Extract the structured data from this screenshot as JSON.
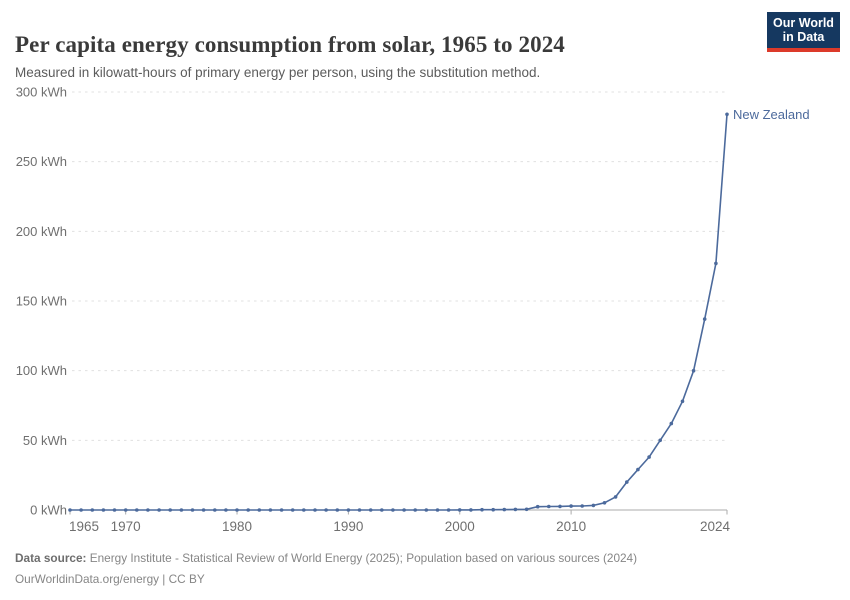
{
  "header": {
    "title": "Per capita energy consumption from solar, 1965 to 2024",
    "subtitle": "Measured in kilowatt-hours of primary energy per person, using the substitution method."
  },
  "logo": {
    "line1": "Our World",
    "line2": "in Data",
    "bg_color": "#153860",
    "bar_color": "#dc3a2a"
  },
  "chart_data": {
    "type": "line",
    "title": "Per capita energy consumption from solar, 1965 to 2024",
    "xlabel": "",
    "ylabel": "kWh",
    "xlim": [
      1965,
      2024
    ],
    "ylim": [
      0,
      300
    ],
    "grid": "horizontal-dashed",
    "legend_position": "end-of-line-label",
    "x_ticks": [
      1965,
      1970,
      1980,
      1990,
      2000,
      2010,
      2024
    ],
    "y_ticks": [
      0,
      50,
      100,
      150,
      200,
      250,
      300
    ],
    "y_tick_suffix": " kWh",
    "x": [
      1965,
      1966,
      1967,
      1968,
      1969,
      1970,
      1971,
      1972,
      1973,
      1974,
      1975,
      1976,
      1977,
      1978,
      1979,
      1980,
      1981,
      1982,
      1983,
      1984,
      1985,
      1986,
      1987,
      1988,
      1989,
      1990,
      1991,
      1992,
      1993,
      1994,
      1995,
      1996,
      1997,
      1998,
      1999,
      2000,
      2001,
      2002,
      2003,
      2004,
      2005,
      2006,
      2007,
      2008,
      2009,
      2010,
      2011,
      2012,
      2013,
      2014,
      2015,
      2016,
      2017,
      2018,
      2019,
      2020,
      2021,
      2022,
      2023,
      2024
    ],
    "series": [
      {
        "name": "New Zealand",
        "color": "#4C6A9C",
        "values": [
          0,
          0,
          0,
          0,
          0,
          0,
          0,
          0,
          0,
          0,
          0,
          0,
          0,
          0,
          0,
          0,
          0,
          0,
          0,
          0,
          0,
          0,
          0,
          0,
          0,
          0,
          0,
          0,
          0,
          0,
          0,
          0,
          0,
          0,
          0,
          0.1,
          0.1,
          0.2,
          0.2,
          0.3,
          0.4,
          0.5,
          2.4,
          2.5,
          2.6,
          2.8,
          2.9,
          3.3,
          5.2,
          9.4,
          20,
          29,
          38,
          50,
          62,
          78,
          100,
          137,
          177,
          284
        ]
      }
    ],
    "style": {
      "grid_color": "#e0e0e0",
      "axis_color": "#ababab",
      "tick_label_color": "#6f6f6f",
      "marker_radius": 1.8,
      "line_width": 1.6
    }
  },
  "footer": {
    "source_label": "Data source:",
    "source_text": " Energy Institute - Statistical Review of World Energy (2025); Population based on various sources (2024)",
    "license_line": "OurWorldinData.org/energy | CC BY"
  }
}
